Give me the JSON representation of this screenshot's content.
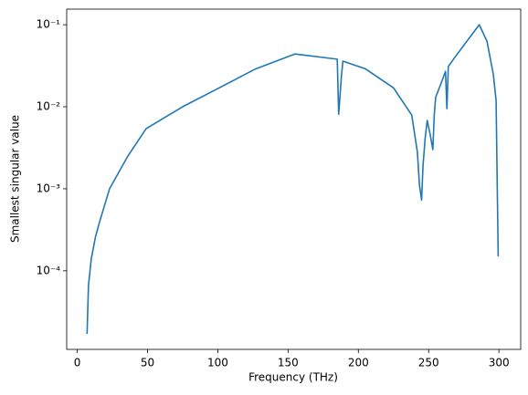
{
  "chart_data": {
    "type": "line",
    "xlabel": "Frequency (THz)",
    "ylabel": "Smallest singular value",
    "x": [
      7,
      8,
      10,
      13,
      16,
      23,
      36,
      49,
      75,
      101,
      127,
      155,
      185,
      186,
      188,
      189,
      205,
      225,
      238,
      242,
      243.5,
      245,
      246,
      247.5,
      249,
      251,
      253,
      254,
      255,
      259,
      262,
      263,
      264,
      270,
      286,
      291.5,
      296,
      298,
      299.5
    ],
    "values": [
      1.7e-05,
      6.6e-05,
      0.00014,
      0.00026,
      0.0004,
      0.001,
      0.0025,
      0.0054,
      0.01,
      0.017,
      0.029,
      0.044,
      0.038,
      0.0081,
      0.024,
      0.036,
      0.029,
      0.017,
      0.0079,
      0.0028,
      0.0011,
      0.00073,
      0.0019,
      0.0041,
      0.0068,
      0.0047,
      0.003,
      0.0079,
      0.013,
      0.0196,
      0.027,
      0.0095,
      0.031,
      0.043,
      0.1,
      0.063,
      0.025,
      0.012,
      0.00015
    ],
    "color": "#1f77b4",
    "xlim": [
      -7.5,
      315.5
    ],
    "xticks": [
      0,
      50,
      100,
      150,
      200,
      250,
      300
    ],
    "ylim": [
      1.1e-05,
      0.155
    ],
    "ylog": true,
    "yticks": [
      {
        "value": 0.0001,
        "label": "10⁻⁴"
      },
      {
        "value": 0.001,
        "label": "10⁻³"
      },
      {
        "value": 0.01,
        "label": "10⁻²"
      },
      {
        "value": 0.1,
        "label": "10⁻¹"
      }
    ]
  }
}
